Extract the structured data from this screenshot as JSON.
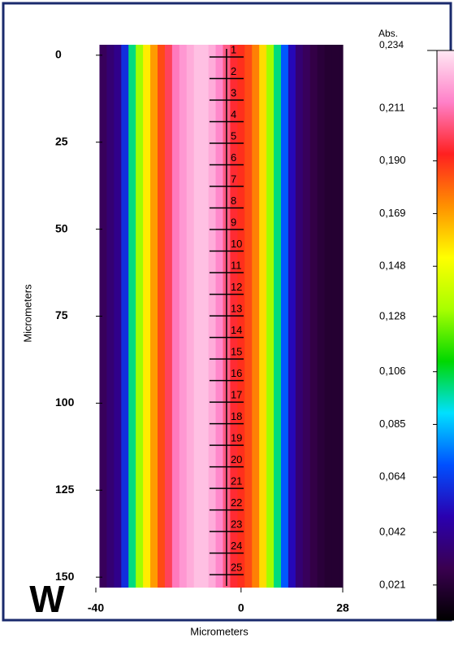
{
  "chart_data": {
    "type": "heatmap",
    "label": "W",
    "xlabel": "Micrometers",
    "ylabel": "Micrometers",
    "xlim": [
      -40,
      28
    ],
    "xticks": [
      -40,
      0,
      28
    ],
    "ylim": [
      -3,
      153
    ],
    "yticks": [
      0,
      25,
      50,
      75,
      100,
      125,
      150
    ],
    "x": [
      -38,
      -36,
      -34,
      -32,
      -30,
      -28,
      -26,
      -24,
      -22,
      -20,
      -18,
      -16,
      -14,
      -12,
      -10,
      -8,
      -6,
      -4,
      -2,
      0,
      2,
      4,
      6,
      8,
      10,
      12,
      14,
      16,
      18,
      20,
      22,
      24,
      26,
      28
    ],
    "values": [
      0.03,
      0.035,
      0.04,
      0.06,
      0.1,
      0.13,
      0.155,
      0.17,
      0.185,
      0.2,
      0.212,
      0.218,
      0.222,
      0.226,
      0.226,
      0.222,
      0.215,
      0.205,
      0.195,
      0.19,
      0.185,
      0.175,
      0.158,
      0.13,
      0.1,
      0.07,
      0.05,
      0.035,
      0.03,
      0.025,
      0.022,
      0.02,
      0.02,
      0.02
    ],
    "markers": {
      "x": -4,
      "labels": [
        "1",
        "2",
        "3",
        "4",
        "5",
        "6",
        "7",
        "8",
        "9",
        "10",
        "11",
        "12",
        "13",
        "14",
        "15",
        "16",
        "17",
        "18",
        "19",
        "20",
        "21",
        "22",
        "23",
        "24",
        "25"
      ],
      "y": [
        0.5,
        6.7,
        12.9,
        19.1,
        25.3,
        31.5,
        37.7,
        43.9,
        50.1,
        56.3,
        62.5,
        68.7,
        74.9,
        81.1,
        87.3,
        93.5,
        99.7,
        105.9,
        112.1,
        118.3,
        124.5,
        130.7,
        136.9,
        143.1,
        149.3
      ]
    },
    "colorbar": {
      "title": "Abs.",
      "clim": [
        0.007,
        0.234
      ],
      "colors": [
        "#000000",
        "#3a0050",
        "#2a00b0",
        "#0050ff",
        "#00e0ff",
        "#00d800",
        "#a8ff00",
        "#ffff00",
        "#ff9000",
        "#ff2020",
        "#ff80c8",
        "#ffe8f4"
      ],
      "ticks": [
        {
          "value": 0.234,
          "label": "0,234"
        },
        {
          "value": 0.211,
          "label": "0,211"
        },
        {
          "value": 0.19,
          "label": "0,190"
        },
        {
          "value": 0.169,
          "label": "0,169"
        },
        {
          "value": 0.148,
          "label": "0,148"
        },
        {
          "value": 0.128,
          "label": "0,128"
        },
        {
          "value": 0.106,
          "label": "0,106"
        },
        {
          "value": 0.085,
          "label": "0,085"
        },
        {
          "value": 0.064,
          "label": "0,064"
        },
        {
          "value": 0.042,
          "label": "0,042"
        },
        {
          "value": 0.021,
          "label": "0,021"
        }
      ]
    }
  }
}
